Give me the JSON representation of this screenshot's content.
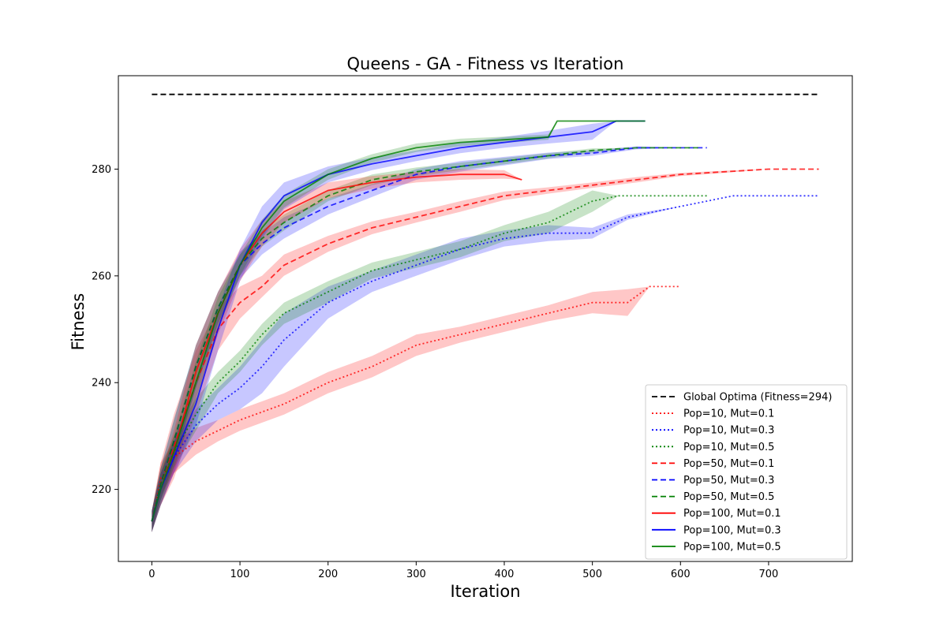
{
  "chart_data": {
    "type": "line",
    "title": "Queens - GA - Fitness vs Iteration",
    "xlabel": "Iteration",
    "ylabel": "Fitness",
    "xlim": [
      -38,
      795
    ],
    "ylim": [
      206.5,
      297.5
    ],
    "xticks": [
      0,
      100,
      200,
      300,
      400,
      500,
      600,
      700
    ],
    "yticks": [
      220,
      240,
      260,
      280
    ],
    "grid": false,
    "legend_position": "lower right",
    "reference": {
      "name": "Global Optima (Fitness=294)",
      "y": 294,
      "x": [
        0,
        757
      ],
      "color": "#000000",
      "dash": "dashed"
    },
    "series": [
      {
        "name": "Pop=10, Mut=0.1",
        "color": "#ff0000",
        "style": "dotted",
        "x": [
          0,
          10,
          25,
          50,
          75,
          100,
          150,
          200,
          250,
          300,
          350,
          400,
          450,
          500,
          540,
          565,
          600
        ],
        "y": [
          214,
          222,
          226,
          229,
          231,
          233,
          236,
          240,
          243,
          247,
          249,
          251,
          253,
          255,
          255,
          258,
          258
        ],
        "band": [
          2,
          3,
          3,
          2.5,
          2,
          2,
          2,
          2,
          2,
          2,
          1.5,
          1.5,
          1.5,
          2,
          2.5,
          0,
          0
        ]
      },
      {
        "name": "Pop=10, Mut=0.3",
        "color": "#0000ff",
        "style": "dotted",
        "x": [
          0,
          10,
          25,
          50,
          75,
          100,
          125,
          150,
          200,
          250,
          300,
          350,
          400,
          450,
          500,
          540,
          600,
          660,
          700,
          757
        ],
        "y": [
          214,
          220,
          226,
          232,
          236,
          239,
          243,
          248,
          255,
          259,
          262,
          265,
          267,
          268,
          268,
          271,
          273,
          275,
          275,
          275
        ],
        "band": [
          2,
          3,
          3,
          3,
          3,
          4,
          5,
          5,
          3,
          2,
          2,
          2,
          1.5,
          1.5,
          1,
          0.5,
          0,
          0,
          0,
          0
        ]
      },
      {
        "name": "Pop=10, Mut=0.5",
        "color": "#008000",
        "style": "dotted",
        "x": [
          0,
          10,
          25,
          50,
          75,
          100,
          125,
          150,
          200,
          250,
          300,
          350,
          400,
          450,
          500,
          530,
          560,
          600,
          630
        ],
        "y": [
          214,
          221,
          227,
          234,
          240,
          244,
          249,
          253,
          257,
          261,
          263,
          265,
          268,
          270,
          274,
          275,
          275,
          275,
          275
        ],
        "band": [
          2,
          3,
          3,
          3,
          2,
          2,
          2,
          2,
          2,
          1.5,
          1.5,
          1.5,
          1.5,
          2,
          2,
          0,
          0,
          0,
          0
        ]
      },
      {
        "name": "Pop=50, Mut=0.1",
        "color": "#ff0000",
        "style": "dashed",
        "x": [
          0,
          10,
          25,
          50,
          75,
          100,
          125,
          150,
          200,
          250,
          300,
          350,
          400,
          450,
          500,
          550,
          600,
          650,
          700,
          757
        ],
        "y": [
          214,
          221,
          228,
          240,
          250,
          255,
          258,
          262,
          266,
          269,
          271,
          273,
          275,
          276,
          277,
          278,
          279,
          279.5,
          280,
          280
        ],
        "band": [
          2,
          4,
          6,
          6,
          4,
          3,
          2,
          2,
          1.5,
          1.2,
          1,
          1,
          0.8,
          0.6,
          0.5,
          0.5,
          0.3,
          0.2,
          0,
          0
        ]
      },
      {
        "name": "Pop=50, Mut=0.3",
        "color": "#0000ff",
        "style": "dashed",
        "x": [
          0,
          10,
          25,
          50,
          75,
          100,
          125,
          150,
          200,
          250,
          300,
          350,
          400,
          450,
          500,
          550,
          600,
          630
        ],
        "y": [
          214,
          221,
          229,
          243,
          254,
          262,
          266,
          269,
          273,
          276,
          279,
          280.5,
          281.5,
          282.5,
          283,
          284,
          284,
          284
        ],
        "band": [
          2,
          3,
          4,
          4,
          3,
          2.5,
          2,
          2,
          1.5,
          1.2,
          1,
          1,
          0.8,
          0.6,
          0.5,
          0.3,
          0,
          0
        ]
      },
      {
        "name": "Pop=50, Mut=0.5",
        "color": "#008000",
        "style": "dashed",
        "x": [
          0,
          10,
          25,
          50,
          75,
          100,
          125,
          150,
          200,
          250,
          300,
          350,
          400,
          450,
          500,
          550,
          600,
          620
        ],
        "y": [
          214,
          221,
          229,
          243,
          254,
          262,
          267,
          270,
          275,
          278,
          279.5,
          280.5,
          281.5,
          282.5,
          283.5,
          284,
          284,
          284
        ],
        "band": [
          2,
          3,
          4,
          4,
          3,
          2,
          1.5,
          1.5,
          1,
          1,
          0.8,
          0.7,
          0.6,
          0.5,
          0.4,
          0,
          0,
          0
        ]
      },
      {
        "name": "Pop=100, Mut=0.1",
        "color": "#ff0000",
        "style": "solid",
        "x": [
          0,
          10,
          25,
          50,
          75,
          100,
          125,
          150,
          200,
          250,
          300,
          350,
          400,
          420
        ],
        "y": [
          214,
          220,
          227,
          242,
          253,
          262,
          268,
          272,
          276,
          277.5,
          278.5,
          279,
          279,
          278
        ],
        "band": [
          2,
          3,
          4,
          5,
          4,
          3,
          2.5,
          2,
          1.5,
          1.2,
          1,
          1,
          0.8,
          0
        ]
      },
      {
        "name": "Pop=100, Mut=0.3",
        "color": "#0000ff",
        "style": "solid",
        "x": [
          0,
          10,
          25,
          50,
          75,
          100,
          125,
          150,
          200,
          250,
          300,
          350,
          400,
          450,
          500,
          527,
          560
        ],
        "y": [
          214,
          220,
          226,
          236,
          250,
          262,
          270,
          275,
          279,
          281,
          282.5,
          284,
          285,
          286,
          287,
          289,
          289
        ],
        "band": [
          2,
          3,
          3,
          4,
          4,
          3,
          3,
          2.5,
          1.5,
          1.2,
          1,
          1,
          1,
          1.2,
          1.5,
          0,
          0
        ]
      },
      {
        "name": "Pop=100, Mut=0.5",
        "color": "#008000",
        "style": "solid",
        "x": [
          0,
          10,
          25,
          50,
          75,
          100,
          125,
          150,
          200,
          250,
          300,
          350,
          400,
          450,
          460,
          500,
          560
        ],
        "y": [
          214,
          220,
          227,
          240,
          253,
          262,
          269,
          274,
          279,
          282,
          284,
          285,
          285.5,
          286,
          289,
          289,
          289
        ],
        "band": [
          2,
          3,
          3,
          4,
          3,
          2,
          1.5,
          1.2,
          1,
          0.8,
          0.8,
          0.7,
          0.6,
          0.5,
          0,
          0,
          0
        ]
      }
    ]
  }
}
